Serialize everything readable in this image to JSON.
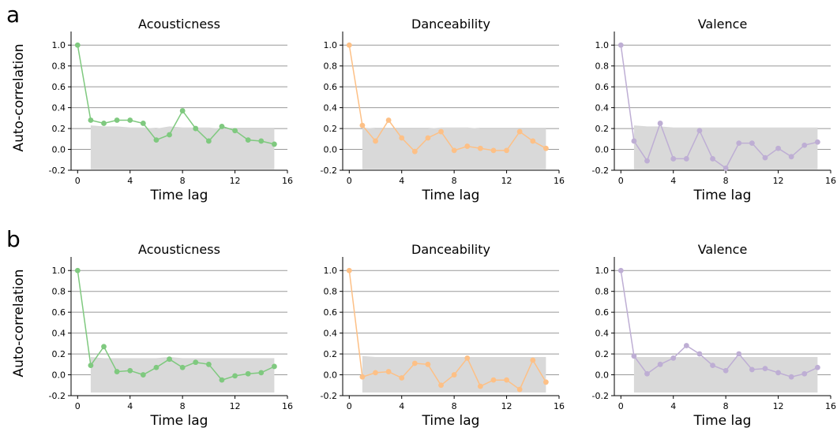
{
  "figure": {
    "rows": [
      {
        "label": "a",
        "ylabel": "Auto-correlation"
      },
      {
        "label": "b",
        "ylabel": "Auto-correlation"
      }
    ]
  },
  "colors": {
    "Acousticness": "#7fc97f",
    "Danceability": "#fdc086",
    "Valence": "#beaed4",
    "band": "#d9d9d9",
    "grid": "#999999"
  },
  "chart_data": [
    {
      "type": "line",
      "row": "a",
      "title": "Acousticness",
      "xlabel": "Time lag",
      "ylabel": "Auto-correlation",
      "xlim": [
        -0.5,
        16
      ],
      "ylim": [
        -0.2,
        1.1
      ],
      "xticks": [
        0,
        4,
        8,
        12,
        16
      ],
      "yticks": [
        -0.2,
        0.0,
        0.2,
        0.4,
        0.6,
        0.8,
        1.0
      ],
      "grid": "horizontal",
      "x": [
        0,
        1,
        2,
        3,
        4,
        5,
        6,
        7,
        8,
        9,
        10,
        11,
        12,
        13,
        14,
        15
      ],
      "series": [
        {
          "values": [
            1.0,
            0.28,
            0.25,
            0.28,
            0.28,
            0.25,
            0.09,
            0.14,
            0.37,
            0.2,
            0.08,
            0.22,
            0.18,
            0.09,
            0.08,
            0.05
          ]
        }
      ],
      "confidence_band": {
        "x": [
          1,
          2,
          3,
          4,
          5,
          6,
          7,
          8,
          9,
          10,
          11,
          12,
          13,
          14,
          15
        ],
        "upper": [
          0.23,
          0.22,
          0.22,
          0.21,
          0.21,
          0.2,
          0.22,
          0.21,
          0.21,
          0.21,
          0.2,
          0.2,
          0.2,
          0.2,
          0.2
        ],
        "lower": [
          -0.19,
          -0.19,
          -0.19,
          -0.19,
          -0.19,
          -0.19,
          -0.19,
          -0.19,
          -0.19,
          -0.19,
          -0.19,
          -0.19,
          -0.19,
          -0.19,
          -0.19
        ]
      }
    },
    {
      "type": "line",
      "row": "a",
      "title": "Danceability",
      "xlabel": "Time lag",
      "ylabel": "",
      "xlim": [
        -0.5,
        16
      ],
      "ylim": [
        -0.2,
        1.1
      ],
      "xticks": [
        0,
        4,
        8,
        12,
        16
      ],
      "yticks": [
        -0.2,
        0.0,
        0.2,
        0.4,
        0.6,
        0.8,
        1.0
      ],
      "grid": "horizontal",
      "x": [
        0,
        1,
        2,
        3,
        4,
        5,
        6,
        7,
        8,
        9,
        10,
        11,
        12,
        13,
        14,
        15
      ],
      "series": [
        {
          "values": [
            1.0,
            0.23,
            0.08,
            0.28,
            0.11,
            -0.02,
            0.11,
            0.17,
            -0.01,
            0.03,
            0.01,
            -0.01,
            -0.01,
            0.17,
            0.08,
            0.01
          ]
        }
      ],
      "confidence_band": {
        "x": [
          1,
          2,
          3,
          4,
          5,
          6,
          7,
          8,
          9,
          10,
          11,
          12,
          13,
          14,
          15
        ],
        "upper": [
          0.21,
          0.2,
          0.2,
          0.2,
          0.2,
          0.2,
          0.21,
          0.21,
          0.21,
          0.2,
          0.2,
          0.2,
          0.2,
          0.2,
          0.2
        ],
        "lower": [
          -0.19,
          -0.19,
          -0.19,
          -0.19,
          -0.19,
          -0.19,
          -0.19,
          -0.19,
          -0.19,
          -0.19,
          -0.19,
          -0.19,
          -0.19,
          -0.19,
          -0.19
        ]
      }
    },
    {
      "type": "line",
      "row": "a",
      "title": "Valence",
      "xlabel": "Time lag",
      "ylabel": "",
      "xlim": [
        -0.5,
        16
      ],
      "ylim": [
        -0.2,
        1.1
      ],
      "xticks": [
        0,
        4,
        8,
        12,
        16
      ],
      "yticks": [
        -0.2,
        0.0,
        0.2,
        0.4,
        0.6,
        0.8,
        1.0
      ],
      "grid": "horizontal",
      "x": [
        0,
        1,
        2,
        3,
        4,
        5,
        6,
        7,
        8,
        9,
        10,
        11,
        12,
        13,
        14,
        15
      ],
      "series": [
        {
          "values": [
            1.0,
            0.08,
            -0.11,
            0.25,
            -0.09,
            -0.09,
            0.18,
            -0.09,
            -0.18,
            0.06,
            0.06,
            -0.08,
            0.01,
            -0.07,
            0.04,
            0.07
          ]
        }
      ],
      "confidence_band": {
        "x": [
          1,
          2,
          3,
          4,
          5,
          6,
          7,
          8,
          9,
          10,
          11,
          12,
          13,
          14,
          15
        ],
        "upper": [
          0.23,
          0.22,
          0.22,
          0.21,
          0.21,
          0.21,
          0.21,
          0.21,
          0.21,
          0.21,
          0.21,
          0.21,
          0.21,
          0.21,
          0.21
        ],
        "lower": [
          -0.19,
          -0.19,
          -0.19,
          -0.19,
          -0.19,
          -0.19,
          -0.19,
          -0.19,
          -0.19,
          -0.19,
          -0.19,
          -0.19,
          -0.19,
          -0.19,
          -0.19
        ]
      }
    },
    {
      "type": "line",
      "row": "b",
      "title": "Acousticness",
      "xlabel": "Time lag",
      "ylabel": "Auto-correlation",
      "xlim": [
        -0.5,
        16
      ],
      "ylim": [
        -0.2,
        1.1
      ],
      "xticks": [
        0,
        4,
        8,
        12,
        16
      ],
      "yticks": [
        -0.2,
        0.0,
        0.2,
        0.4,
        0.6,
        0.8,
        1.0
      ],
      "grid": "horizontal",
      "x": [
        0,
        1,
        2,
        3,
        4,
        5,
        6,
        7,
        8,
        9,
        10,
        11,
        12,
        13,
        14,
        15
      ],
      "series": [
        {
          "values": [
            1.0,
            0.09,
            0.27,
            0.03,
            0.04,
            0.0,
            0.07,
            0.15,
            0.07,
            0.12,
            0.1,
            -0.05,
            -0.01,
            0.01,
            0.02,
            0.08
          ]
        }
      ],
      "confidence_band": {
        "x": [
          1,
          2,
          3,
          4,
          5,
          6,
          7,
          8,
          9,
          10,
          11,
          12,
          13,
          14,
          15
        ],
        "upper": [
          0.17,
          0.16,
          0.16,
          0.16,
          0.16,
          0.16,
          0.17,
          0.16,
          0.16,
          0.16,
          0.16,
          0.16,
          0.16,
          0.16,
          0.16
        ],
        "lower": [
          -0.17,
          -0.17,
          -0.17,
          -0.17,
          -0.17,
          -0.17,
          -0.17,
          -0.17,
          -0.17,
          -0.17,
          -0.17,
          -0.17,
          -0.17,
          -0.17,
          -0.17
        ]
      }
    },
    {
      "type": "line",
      "row": "b",
      "title": "Danceability",
      "xlabel": "Time lag",
      "ylabel": "",
      "xlim": [
        -0.5,
        16
      ],
      "ylim": [
        -0.2,
        1.1
      ],
      "xticks": [
        0,
        4,
        8,
        12,
        16
      ],
      "yticks": [
        -0.2,
        0.0,
        0.2,
        0.4,
        0.6,
        0.8,
        1.0
      ],
      "grid": "horizontal",
      "x": [
        0,
        1,
        2,
        3,
        4,
        5,
        6,
        7,
        8,
        9,
        10,
        11,
        12,
        13,
        14,
        15
      ],
      "series": [
        {
          "values": [
            1.0,
            -0.02,
            0.02,
            0.03,
            -0.03,
            0.11,
            0.1,
            -0.1,
            0.0,
            0.16,
            -0.11,
            -0.05,
            -0.05,
            -0.14,
            0.14,
            -0.07
          ]
        }
      ],
      "confidence_band": {
        "x": [
          1,
          2,
          3,
          4,
          5,
          6,
          7,
          8,
          9,
          10,
          11,
          12,
          13,
          14,
          15
        ],
        "upper": [
          0.18,
          0.17,
          0.17,
          0.17,
          0.17,
          0.17,
          0.17,
          0.17,
          0.17,
          0.17,
          0.17,
          0.17,
          0.17,
          0.17,
          0.17
        ],
        "lower": [
          -0.17,
          -0.17,
          -0.17,
          -0.17,
          -0.17,
          -0.17,
          -0.17,
          -0.17,
          -0.17,
          -0.17,
          -0.17,
          -0.17,
          -0.17,
          -0.17,
          -0.17
        ]
      }
    },
    {
      "type": "line",
      "row": "b",
      "title": "Valence",
      "xlabel": "Time lag",
      "ylabel": "",
      "xlim": [
        -0.5,
        16
      ],
      "ylim": [
        -0.2,
        1.1
      ],
      "xticks": [
        0,
        4,
        8,
        12,
        16
      ],
      "yticks": [
        -0.2,
        0.0,
        0.2,
        0.4,
        0.6,
        0.8,
        1.0
      ],
      "grid": "horizontal",
      "x": [
        0,
        1,
        2,
        3,
        4,
        5,
        6,
        7,
        8,
        9,
        10,
        11,
        12,
        13,
        14,
        15
      ],
      "series": [
        {
          "values": [
            1.0,
            0.18,
            0.01,
            0.1,
            0.16,
            0.28,
            0.2,
            0.09,
            0.04,
            0.2,
            0.05,
            0.06,
            0.02,
            -0.02,
            0.01,
            0.07
          ]
        }
      ],
      "confidence_band": {
        "x": [
          1,
          2,
          3,
          4,
          5,
          6,
          7,
          8,
          9,
          10,
          11,
          12,
          13,
          14,
          15
        ],
        "upper": [
          0.17,
          0.17,
          0.17,
          0.17,
          0.17,
          0.17,
          0.17,
          0.17,
          0.17,
          0.17,
          0.17,
          0.17,
          0.17,
          0.17,
          0.17
        ],
        "lower": [
          -0.17,
          -0.17,
          -0.17,
          -0.17,
          -0.17,
          -0.17,
          -0.17,
          -0.17,
          -0.17,
          -0.17,
          -0.17,
          -0.17,
          -0.17,
          -0.17,
          -0.17
        ]
      }
    }
  ]
}
